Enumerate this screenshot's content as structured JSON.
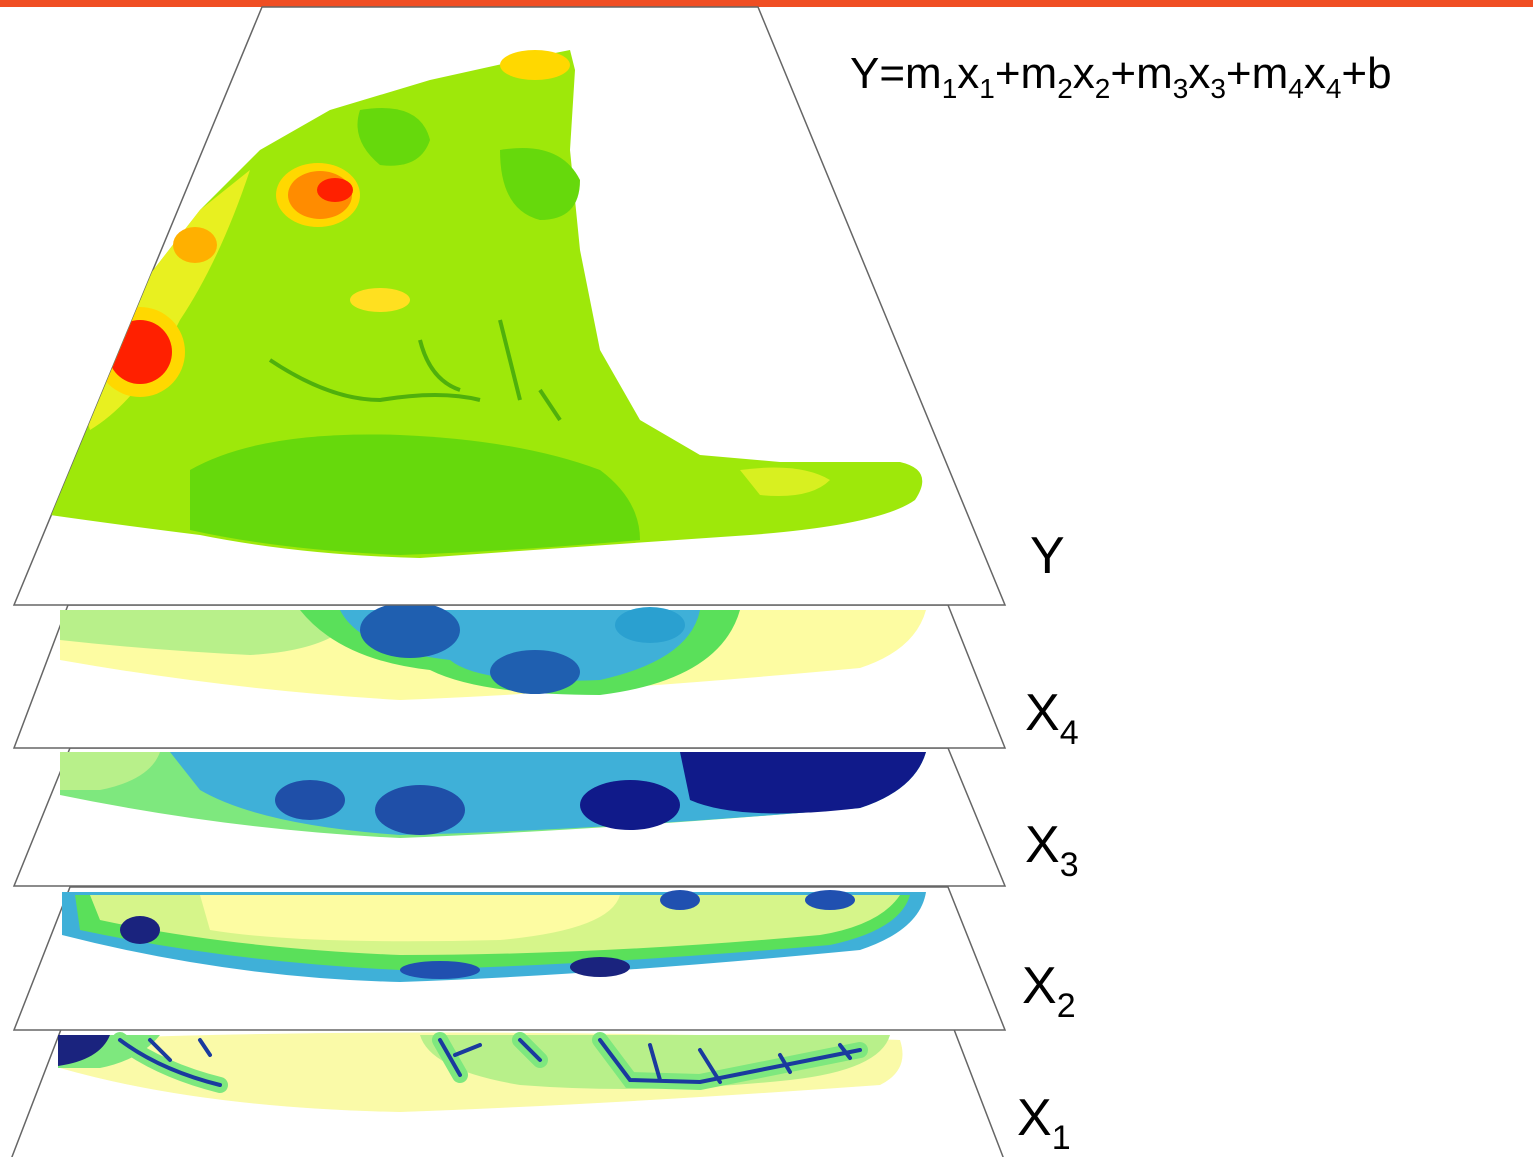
{
  "equation": {
    "terms": [
      {
        "base": "Y=m",
        "sub": "1"
      },
      {
        "base": "x",
        "sub": "1"
      },
      {
        "base": "+m",
        "sub": "2"
      },
      {
        "base": "x",
        "sub": "2"
      },
      {
        "base": "+m",
        "sub": "3"
      },
      {
        "base": "x",
        "sub": "3"
      },
      {
        "base": "+m",
        "sub": "4"
      },
      {
        "base": "x",
        "sub": "4"
      }
    ],
    "tail": "+b"
  },
  "layers": [
    {
      "base": "Y"
    },
    {
      "base": "X",
      "sub": "4"
    },
    {
      "base": "X",
      "sub": "3"
    },
    {
      "base": "X",
      "sub": "2"
    },
    {
      "base": "X",
      "sub": "1"
    }
  ]
}
